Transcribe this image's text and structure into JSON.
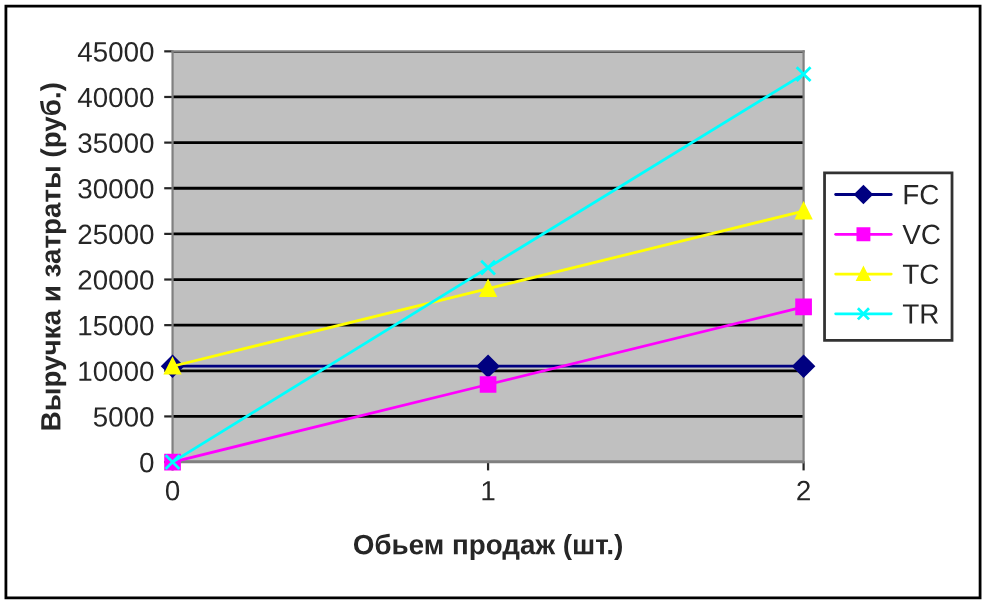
{
  "chart_data": {
    "type": "line",
    "xlabel": "Обьем продаж (шт.)",
    "ylabel": "Выручка и затраты (руб.)",
    "categories": [
      "0",
      "1",
      "2"
    ],
    "series": [
      {
        "name": "FC",
        "color": "#000080",
        "values": [
          10500,
          10500,
          10500
        ],
        "marker": "diamond"
      },
      {
        "name": "VC",
        "color": "#ff00ff",
        "values": [
          0,
          8500,
          17000
        ],
        "marker": "square"
      },
      {
        "name": "TC",
        "color": "#ffff00",
        "values": [
          10500,
          19000,
          27500
        ],
        "marker": "triangle"
      },
      {
        "name": "TR",
        "color": "#00ffff",
        "values": [
          0,
          21300,
          42500
        ],
        "marker": "cross"
      }
    ],
    "ylim": [
      0,
      45000
    ],
    "yticks": [
      0,
      5000,
      10000,
      15000,
      20000,
      25000,
      30000,
      35000,
      40000,
      45000
    ],
    "grid": "y",
    "legend": "right",
    "line_style": "solid"
  }
}
